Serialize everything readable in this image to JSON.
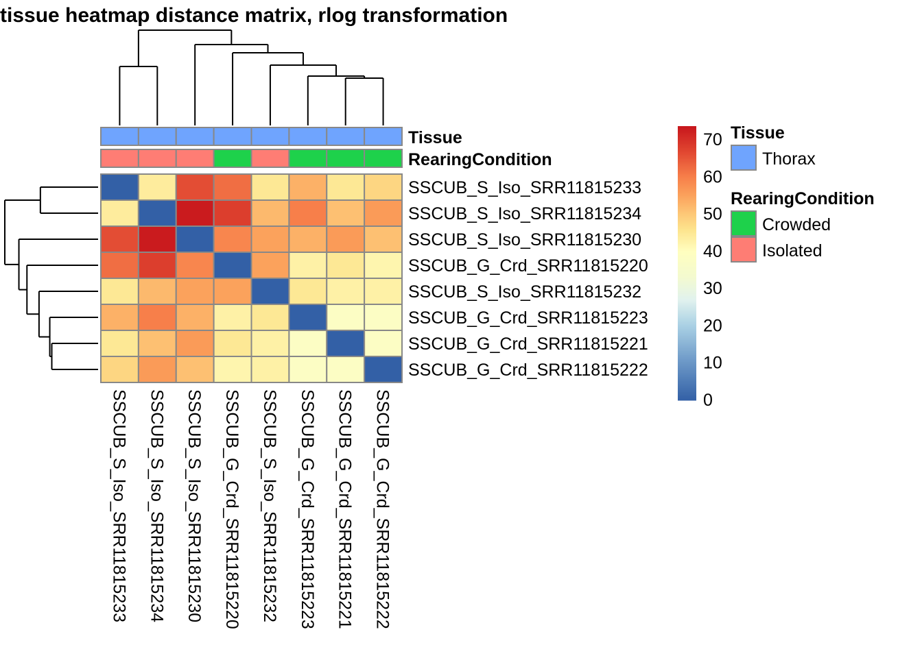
{
  "chart_data": {
    "type": "heatmap",
    "title": "tissue heatmap distance matrix, rlog transformation",
    "rows": [
      "SSCUB_S_Iso_SRR11815233",
      "SSCUB_S_Iso_SRR11815234",
      "SSCUB_S_Iso_SRR11815230",
      "SSCUB_G_Crd_SRR11815220",
      "SSCUB_S_Iso_SRR11815232",
      "SSCUB_G_Crd_SRR11815223",
      "SSCUB_G_Crd_SRR11815221",
      "SSCUB_G_Crd_SRR11815222"
    ],
    "columns": [
      "SSCUB_S_Iso_SRR11815233",
      "SSCUB_S_Iso_SRR11815234",
      "SSCUB_S_Iso_SRR11815230",
      "SSCUB_G_Crd_SRR11815220",
      "SSCUB_S_Iso_SRR11815232",
      "SSCUB_G_Crd_SRR11815223",
      "SSCUB_G_Crd_SRR11815221",
      "SSCUB_G_Crd_SRR11815222"
    ],
    "values": [
      [
        0,
        44,
        66,
        62,
        45,
        53,
        45,
        48
      ],
      [
        44,
        0,
        73,
        68,
        52,
        60,
        51,
        56
      ],
      [
        66,
        73,
        0,
        59,
        55,
        53,
        56,
        51
      ],
      [
        62,
        68,
        59,
        0,
        55,
        43,
        45,
        42
      ],
      [
        45,
        52,
        55,
        55,
        0,
        45,
        43,
        43
      ],
      [
        53,
        60,
        53,
        43,
        45,
        0,
        38,
        38
      ],
      [
        45,
        51,
        56,
        45,
        43,
        38,
        0,
        38
      ],
      [
        48,
        56,
        51,
        42,
        43,
        38,
        38,
        0
      ]
    ],
    "color_scale": {
      "range": [
        0,
        73.5
      ],
      "ticks": [
        "0",
        "10",
        "20",
        "30",
        "40",
        "50",
        "60",
        "70"
      ],
      "colors": [
        "#3360a6",
        "#fffebf",
        "#c8171d"
      ]
    },
    "annotations": {
      "tracks": [
        {
          "name": "Tissue",
          "values": [
            "Thorax",
            "Thorax",
            "Thorax",
            "Thorax",
            "Thorax",
            "Thorax",
            "Thorax",
            "Thorax"
          ]
        },
        {
          "name": "RearingCondition",
          "values": [
            "Isolated",
            "Isolated",
            "Isolated",
            "Crowded",
            "Isolated",
            "Crowded",
            "Crowded",
            "Crowded"
          ]
        }
      ],
      "legend": [
        {
          "title": "Tissue",
          "levels": [
            {
              "label": "Thorax",
              "color": "#6fa4fe"
            }
          ]
        },
        {
          "title": "RearingCondition",
          "levels": [
            {
              "label": "Crowded",
              "color": "#1ed14b"
            },
            {
              "label": "Isolated",
              "color": "#fe7d74"
            }
          ]
        }
      ]
    },
    "dendrogram": "hierarchical clustering on rows and columns",
    "legend_position": "right"
  }
}
